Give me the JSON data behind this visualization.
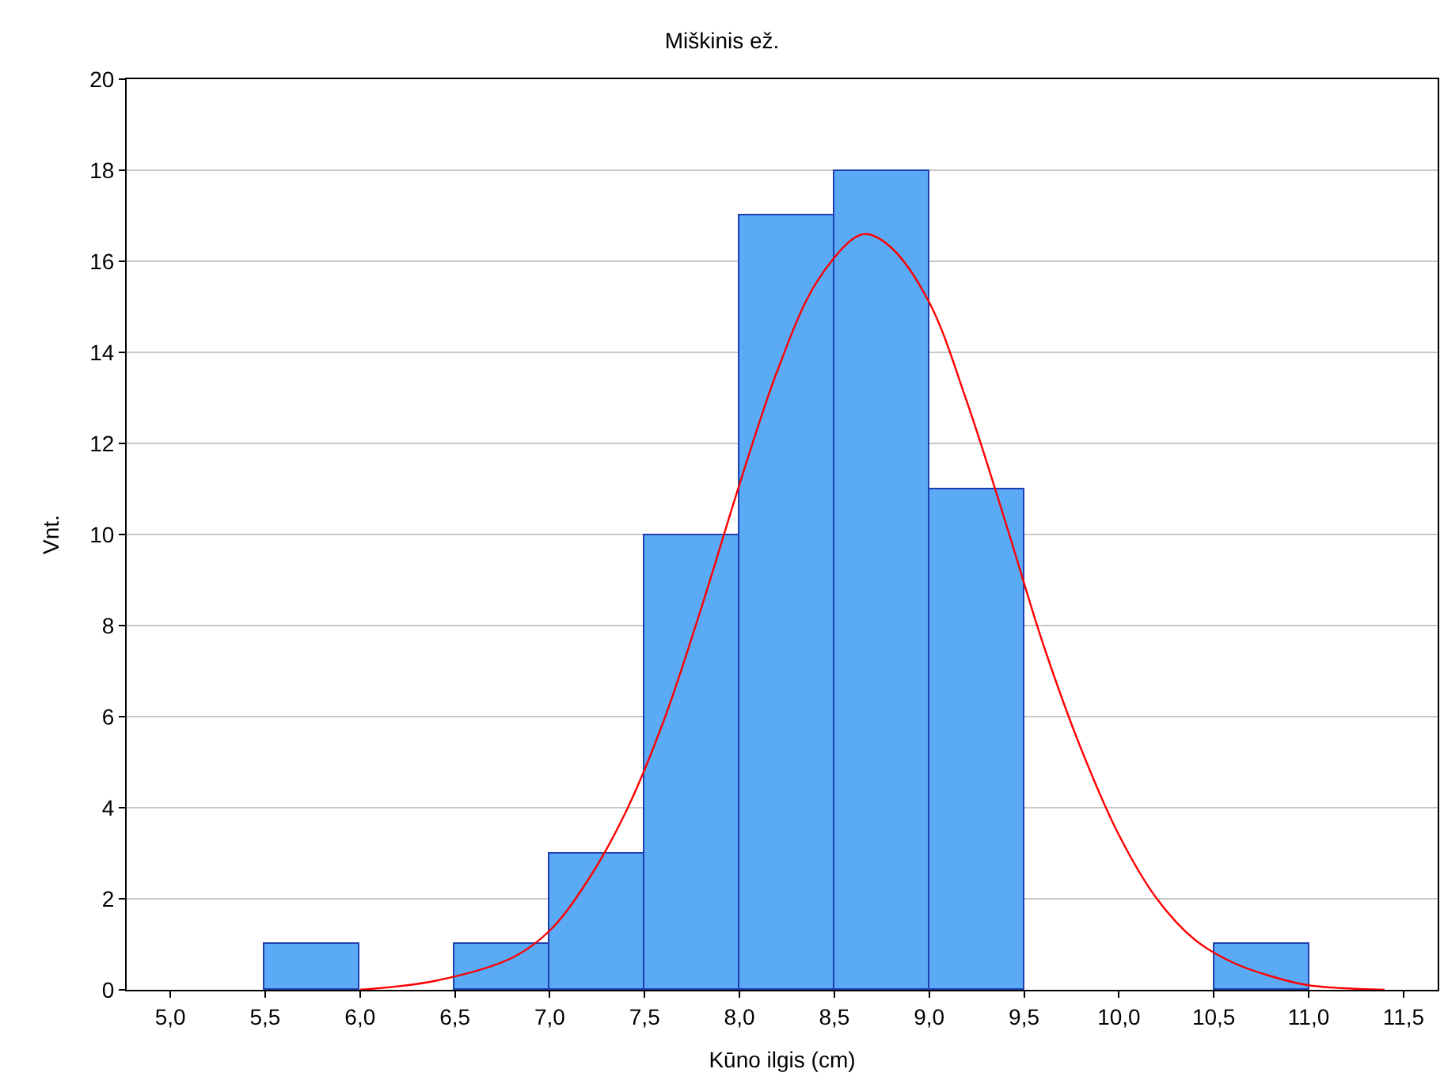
{
  "chart_data": {
    "type": "histogram",
    "title": "Miškinis ež.",
    "xlabel": "Kūno ilgis (cm)",
    "ylabel": "Vnt.",
    "series": [
      {
        "color": "#5aaaf5",
        "bins": [
          5.0,
          5.5,
          6.0,
          6.5,
          7.0,
          7.5,
          8.0,
          8.5,
          9.0,
          9.5,
          10.0,
          10.5,
          11.0,
          11.5
        ],
        "values": [
          0,
          1,
          0,
          1,
          3,
          10,
          17,
          18,
          11,
          0,
          0,
          1,
          0
        ]
      },
      {
        "type": "line",
        "color": "#ff0000",
        "x": [
          6.0,
          6.4,
          6.8,
          7.0,
          7.2,
          7.4,
          7.6,
          7.8,
          8.0,
          8.2,
          8.4,
          8.6,
          8.67,
          8.8,
          9.0,
          9.2,
          9.4,
          9.6,
          9.8,
          10.0,
          10.2,
          10.4,
          10.6,
          10.8,
          11.0,
          11.4
        ],
        "values": [
          0.0,
          0.2,
          0.7,
          1.3,
          2.4,
          3.9,
          5.9,
          8.4,
          11.1,
          13.6,
          15.5,
          16.5,
          16.6,
          16.3,
          15.1,
          12.9,
          10.3,
          7.6,
          5.3,
          3.4,
          2.0,
          1.1,
          0.6,
          0.3,
          0.1,
          0.0
        ]
      }
    ],
    "xlim": [
      4.77,
      11.68
    ],
    "ylim": [
      0,
      20
    ],
    "xticks": [
      {
        "value": 5.0,
        "label": "5,0"
      },
      {
        "value": 5.5,
        "label": "5,5"
      },
      {
        "value": 6.0,
        "label": "6,0"
      },
      {
        "value": 6.5,
        "label": "6,5"
      },
      {
        "value": 7.0,
        "label": "7,0"
      },
      {
        "value": 7.5,
        "label": "7,5"
      },
      {
        "value": 8.0,
        "label": "8,0"
      },
      {
        "value": 8.5,
        "label": "8,5"
      },
      {
        "value": 9.0,
        "label": "9,0"
      },
      {
        "value": 9.5,
        "label": "9,5"
      },
      {
        "value": 10.0,
        "label": "10,0"
      },
      {
        "value": 10.5,
        "label": "10,5"
      },
      {
        "value": 11.0,
        "label": "11,0"
      },
      {
        "value": 11.5,
        "label": "11,5"
      }
    ],
    "yticks": [
      0,
      2,
      4,
      6,
      8,
      10,
      12,
      14,
      16,
      18,
      20
    ],
    "grid": "y",
    "marker": "none",
    "line_style": "solid"
  }
}
